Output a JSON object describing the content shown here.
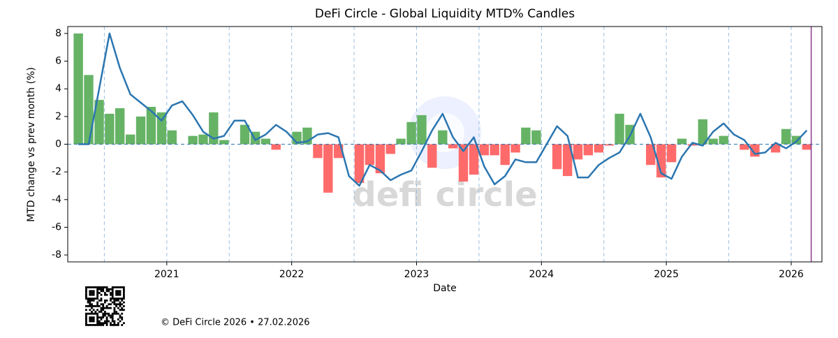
{
  "chart_data": {
    "type": "candles",
    "title": "DeFi Circle - Global Liquidity MTD% Candles",
    "xlabel": "Date",
    "ylabel": "MTD change vs prev month (%)",
    "watermark": "defi circle",
    "footer": "© DeFi Circle 2026 • 27.02.2026",
    "x": [
      2020.25,
      2020.333,
      2020.417,
      2020.5,
      2020.583,
      2020.667,
      2020.75,
      2020.833,
      2020.917,
      2021,
      2021.083,
      2021.167,
      2021.25,
      2021.333,
      2021.417,
      2021.5,
      2021.583,
      2021.667,
      2021.75,
      2021.833,
      2021.917,
      2022,
      2022.083,
      2022.167,
      2022.25,
      2022.333,
      2022.417,
      2022.5,
      2022.583,
      2022.667,
      2022.75,
      2022.833,
      2022.917,
      2023,
      2023.083,
      2023.167,
      2023.25,
      2023.333,
      2023.417,
      2023.5,
      2023.583,
      2023.667,
      2023.75,
      2023.833,
      2023.917,
      2024,
      2024.083,
      2024.167,
      2024.25,
      2024.333,
      2024.417,
      2024.5,
      2024.583,
      2024.667,
      2024.75,
      2024.833,
      2024.917,
      2025,
      2025.083,
      2025.167,
      2025.25,
      2025.333,
      2025.417,
      2025.5,
      2025.583,
      2025.667,
      2025.75,
      2025.833,
      2025.917,
      2026,
      2026.083
    ],
    "bars": {
      "up_color": "#66b366",
      "down_color": "#ff6b6b",
      "values": [
        8,
        5,
        3.2,
        2.2,
        2.6,
        0.7,
        2.0,
        2.7,
        2.3,
        1.0,
        0,
        0.6,
        0.7,
        2.3,
        0.3,
        0,
        1.4,
        0.9,
        0.4,
        -0.4,
        0,
        0.9,
        1.2,
        -1.0,
        -3.5,
        -1.0,
        0,
        -2.8,
        -1.5,
        -2.1,
        -0.7,
        0.4,
        1.6,
        2.1,
        -1.7,
        1.0,
        -0.3,
        -2.7,
        -2.2,
        -0.8,
        -0.8,
        -1.5,
        -0.6,
        1.2,
        1.0,
        0,
        -1.8,
        -2.3,
        -1.1,
        -0.8,
        -0.6,
        -0.1,
        2.2,
        1.4,
        0,
        -1.5,
        -2.4,
        -1.3,
        0.4,
        -0.1,
        1.8,
        0.4,
        0.6,
        0,
        -0.4,
        -0.9,
        0,
        -0.6,
        1.1,
        0.6,
        -0.4
      ]
    },
    "line": {
      "color": "#2b76b0",
      "values": [
        0,
        0,
        4,
        8,
        5.5,
        3.6,
        3.0,
        2.4,
        1.7,
        2.8,
        3.1,
        2.1,
        0.9,
        0.4,
        0.6,
        1.7,
        1.7,
        0.3,
        0.7,
        1.4,
        0.9,
        0.1,
        0.2,
        0.7,
        0.8,
        0.5,
        -2.3,
        -3.0,
        -1.5,
        -1.9,
        -2.6,
        -2.2,
        -1.9,
        -0.5,
        1.0,
        2.2,
        0.5,
        -0.5,
        0.5,
        -1.6,
        -2.9,
        -2.3,
        -1.1,
        -1.3,
        -1.3,
        0,
        1.3,
        0.6,
        -2.4,
        -2.4,
        -1.5,
        -1.0,
        -0.6,
        0.6,
        2.2,
        0.5,
        -2.1,
        -2.5,
        -0.9,
        0.1,
        -0.1,
        0.9,
        1.5,
        0.7,
        0.3,
        -0.7,
        -0.6,
        0.1,
        -0.3,
        0.2,
        1.0
      ]
    },
    "xlim": [
      2020.207,
      2026.246
    ],
    "ylim": [
      -8.5,
      8.5
    ],
    "xticks": [
      2021,
      2022,
      2023,
      2024,
      2025,
      2026
    ],
    "yticks": [
      -8,
      -6,
      -4,
      -2,
      0,
      2,
      4,
      6,
      8
    ],
    "minor_vlines": [
      2020.5,
      2021.5,
      2022.5,
      2023.5,
      2024.5,
      2025.5
    ],
    "marker_x": 2026.16,
    "marker_color": "#8b3a8b"
  }
}
